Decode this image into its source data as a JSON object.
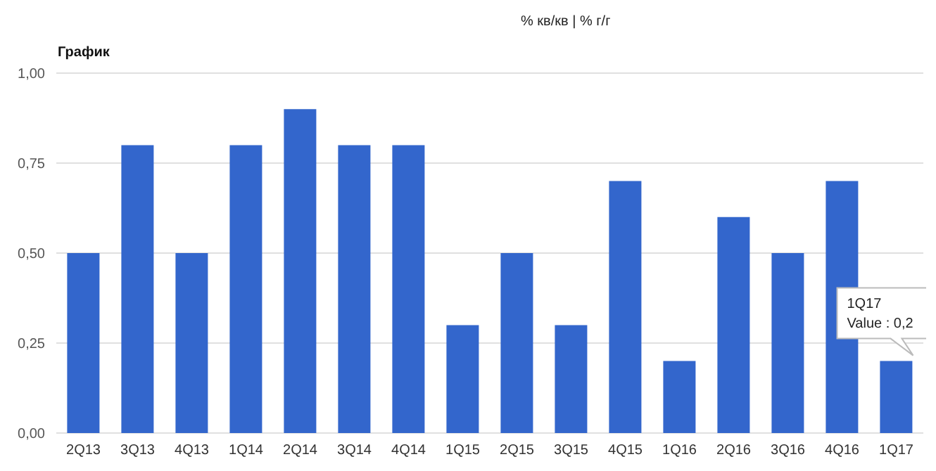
{
  "chart_data": {
    "type": "bar",
    "title": "График",
    "subtitle": "% кв/кв | % г/г",
    "categories": [
      "2Q13",
      "3Q13",
      "4Q13",
      "1Q14",
      "2Q14",
      "3Q14",
      "4Q14",
      "1Q15",
      "2Q15",
      "3Q15",
      "4Q15",
      "1Q16",
      "2Q16",
      "3Q16",
      "4Q16",
      "1Q17"
    ],
    "values": [
      0.5,
      0.8,
      0.5,
      0.8,
      0.9,
      0.8,
      0.8,
      0.3,
      0.5,
      0.3,
      0.7,
      0.2,
      0.6,
      0.5,
      0.7,
      0.2
    ],
    "color": "#3366cc",
    "ylim": [
      0,
      1
    ],
    "yticks": [
      {
        "value": 0,
        "label": "0,00"
      },
      {
        "value": 0.25,
        "label": "0,25"
      },
      {
        "value": 0.5,
        "label": "0,50"
      },
      {
        "value": 0.75,
        "label": "0,75"
      },
      {
        "value": 1,
        "label": "1,00"
      }
    ],
    "grid": "y",
    "legend": false,
    "annotations": [
      "1Q17",
      {
        "text": "Value : 0,2",
        "x": "1Q17",
        "y": 0.2
      }
    ]
  }
}
